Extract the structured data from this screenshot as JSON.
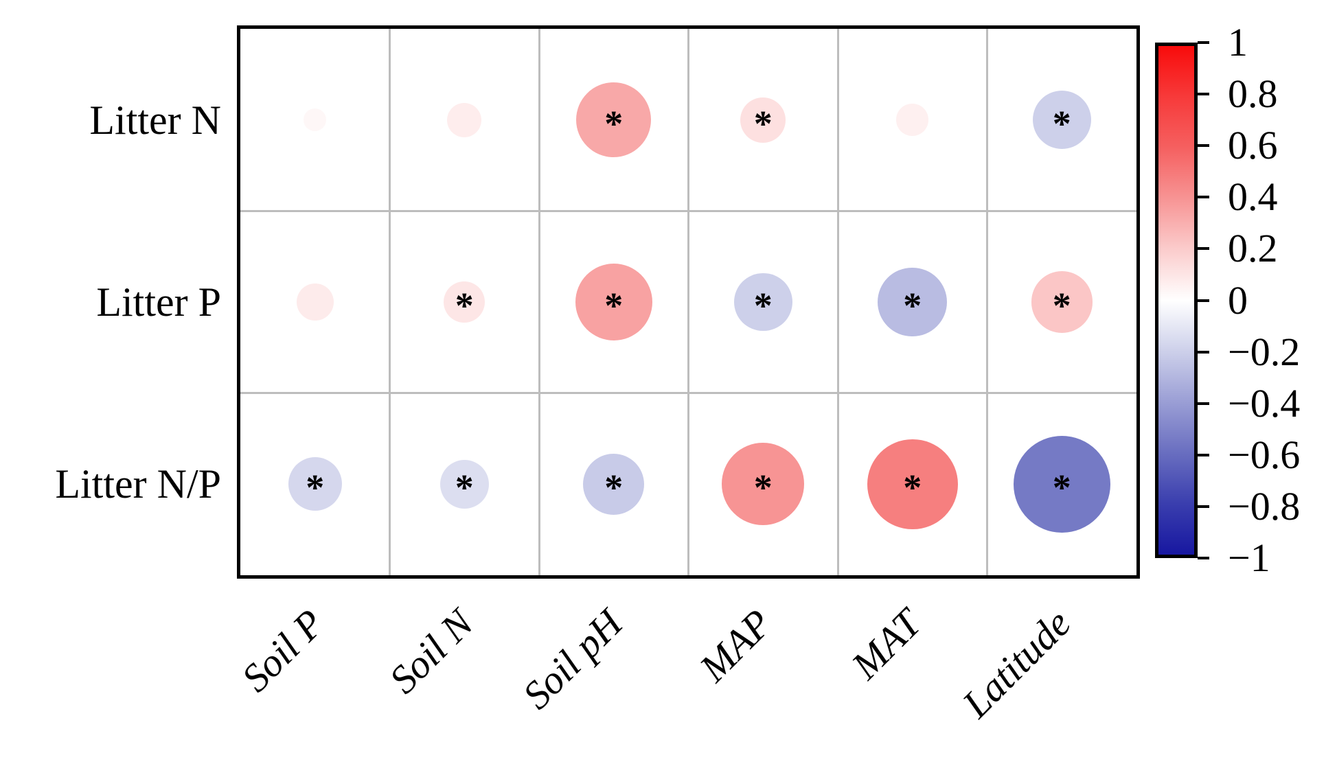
{
  "chart_data": {
    "type": "correlation-bubble-matrix",
    "title": "",
    "rows": [
      "Litter N",
      "Litter P",
      "Litter N/P"
    ],
    "columns": [
      "Soil P",
      "Soil N",
      "Soil pH",
      "MAP",
      "MAT",
      "Latitude"
    ],
    "series": [
      {
        "name": "Litter N",
        "values": [
          0.03,
          0.07,
          0.33,
          0.12,
          0.06,
          -0.2
        ],
        "significant": [
          false,
          false,
          true,
          true,
          false,
          true
        ]
      },
      {
        "name": "Litter P",
        "values": [
          0.08,
          0.1,
          0.35,
          -0.2,
          -0.28,
          0.22
        ],
        "significant": [
          false,
          true,
          true,
          true,
          true,
          true
        ]
      },
      {
        "name": "Litter N/P",
        "values": [
          -0.17,
          -0.14,
          -0.22,
          0.4,
          0.48,
          -0.55
        ],
        "significant": [
          true,
          true,
          true,
          true,
          true,
          true
        ]
      }
    ],
    "significance_marker": "*",
    "value_range": [
      -1,
      1
    ],
    "grid": true,
    "legend_position": "right",
    "colorbar": {
      "tick_values": [
        1,
        0.8,
        0.6,
        0.4,
        0.2,
        0,
        -0.2,
        -0.4,
        -0.6,
        -0.8,
        -1
      ],
      "tick_labels": [
        "1",
        "0.8",
        "0.6",
        "0.4",
        "0.2",
        "0",
        "−0.2",
        "−0.4",
        "−0.6",
        "−0.8",
        "−1"
      ]
    },
    "color_scale": [
      {
        "v": -1.0,
        "c": "#1717a0"
      },
      {
        "v": -0.8,
        "c": "#3a3eae"
      },
      {
        "v": -0.6,
        "c": "#696ec0"
      },
      {
        "v": -0.4,
        "c": "#9a9ed5"
      },
      {
        "v": -0.2,
        "c": "#cdd0ea"
      },
      {
        "v": 0.0,
        "c": "#ffffff"
      },
      {
        "v": 0.2,
        "c": "#fbcccc"
      },
      {
        "v": 0.4,
        "c": "#f79494"
      },
      {
        "v": 0.6,
        "c": "#f56060"
      },
      {
        "v": 0.8,
        "c": "#f73a3a"
      },
      {
        "v": 1.0,
        "c": "#f80b0b"
      }
    ]
  }
}
